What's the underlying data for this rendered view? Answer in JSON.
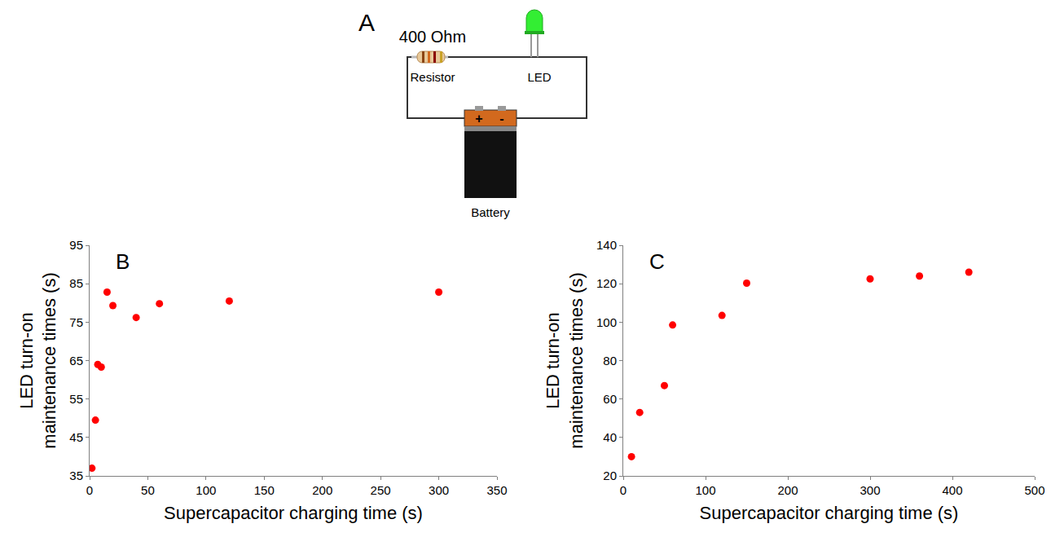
{
  "diagram": {
    "label": "A",
    "resistor": {
      "value_text": "400 Ohm",
      "label": "Resistor"
    },
    "led": {
      "label": "LED"
    },
    "battery": {
      "label": "Battery",
      "positive": "+",
      "negative": "-"
    }
  },
  "chart_data": [
    {
      "type": "scatter",
      "annotations": [
        "B"
      ],
      "x_label": "Supercapacitor charging time (s)",
      "y_label": "LED turn-on maintenance times (s)",
      "x": [
        2,
        5,
        7,
        10,
        15,
        20,
        40,
        60,
        120,
        300
      ],
      "values": [
        37,
        49.5,
        64,
        63.3,
        82.8,
        79.3,
        76.2,
        79.8,
        80.5,
        82.8
      ],
      "color": "#ff0000",
      "marker": "circle",
      "xlim": [
        0,
        350
      ],
      "xticks": [
        0,
        50,
        100,
        150,
        200,
        250,
        300,
        350
      ],
      "ylim": [
        35,
        95
      ],
      "yticks": [
        35,
        45,
        55,
        65,
        75,
        85,
        95
      ],
      "grid": false
    },
    {
      "type": "scatter",
      "annotations": [
        "C"
      ],
      "x_label": "Supercapacitor charging time (s)",
      "y_label": "LED turn-on maintenance times (s)",
      "x": [
        10,
        20,
        50,
        60,
        120,
        150,
        300,
        360,
        420
      ],
      "values": [
        30,
        53,
        67,
        98.5,
        103.5,
        120.3,
        122.5,
        124,
        126
      ],
      "color": "#ff0000",
      "marker": "circle",
      "xlim": [
        0,
        500
      ],
      "xticks": [
        0,
        100,
        200,
        300,
        400,
        500
      ],
      "ylim": [
        20,
        140
      ],
      "yticks": [
        20,
        40,
        60,
        80,
        100,
        120,
        140
      ],
      "grid": false
    }
  ]
}
